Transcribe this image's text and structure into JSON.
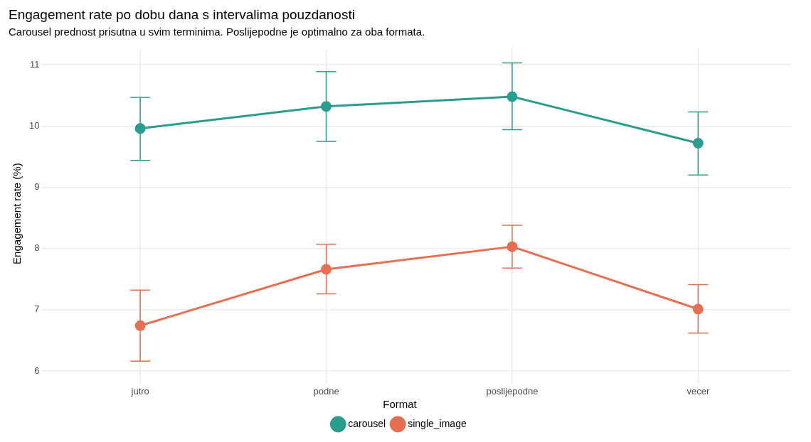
{
  "chart_data": {
    "type": "line",
    "title": "Engagement rate po dobu dana s intervalima pouzdanosti",
    "subtitle": "Carousel prednost prisutna u svim terminima. Poslijepodne je optimalno za oba formata.",
    "ylabel": "Engagement rate (%)",
    "legend_title": "Format",
    "categories": [
      "jutro",
      "podne",
      "poslijepodne",
      "vecer"
    ],
    "series": [
      {
        "name": "carousel",
        "color": "#2a9d8f",
        "values": [
          9.96,
          10.32,
          10.48,
          9.72
        ],
        "errors": [
          [
            9.44,
            10.47
          ],
          [
            9.75,
            10.89
          ],
          [
            9.94,
            11.03
          ],
          [
            9.2,
            10.23
          ]
        ]
      },
      {
        "name": "single_image",
        "color": "#e76f51",
        "values": [
          6.74,
          7.66,
          8.03,
          7.01
        ],
        "errors": [
          [
            6.16,
            7.32
          ],
          [
            7.26,
            8.07
          ],
          [
            7.68,
            8.38
          ],
          [
            6.62,
            7.41
          ]
        ]
      }
    ],
    "ylim": [
      5.88,
      11.26
    ],
    "yticks": [
      6,
      7,
      8,
      9,
      10,
      11
    ],
    "grid": true,
    "legend": "bottom",
    "marker": "circle",
    "line_style": "solid"
  }
}
